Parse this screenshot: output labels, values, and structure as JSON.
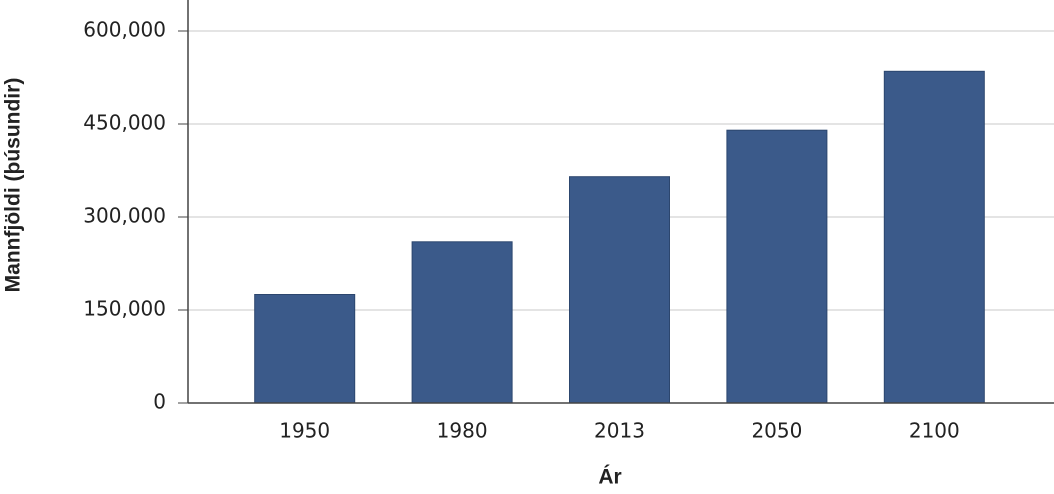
{
  "chart_data": {
    "type": "bar",
    "x_label": "Ár",
    "y_label": "Mannfjöldi (þúsundir)",
    "categories": [
      "1950",
      "1980",
      "2013",
      "2050",
      "2100"
    ],
    "values": [
      175000,
      260000,
      365000,
      440000,
      535000
    ],
    "color": "#3b5a8a",
    "ylim": [
      0,
      650000
    ],
    "yticks": [
      0,
      {
        "value": 150000,
        "label": "150,000"
      },
      {
        "value": 300000,
        "label": "300,000"
      },
      {
        "value": 450000,
        "label": "450,000"
      },
      {
        "value": 600000,
        "label": "600,000"
      }
    ],
    "grid": true
  }
}
